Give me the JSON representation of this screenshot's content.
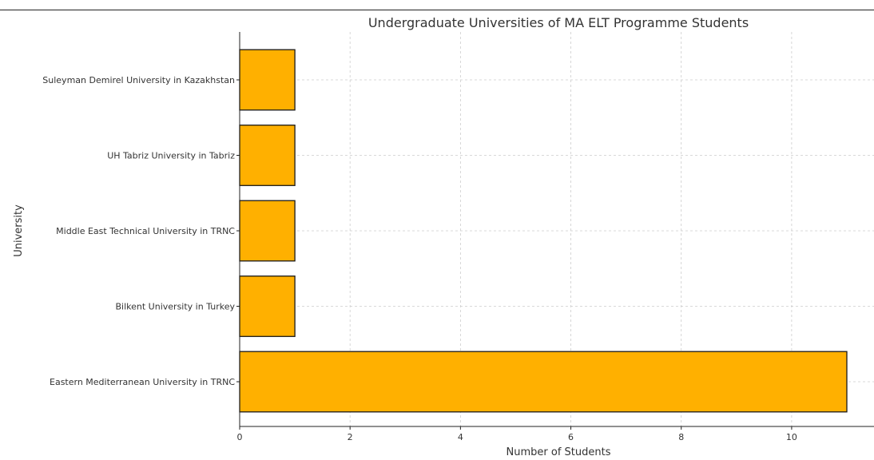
{
  "chart_data": {
    "type": "bar",
    "orientation": "horizontal",
    "title": "Undergraduate Universities of MA ELT Programme Students",
    "xlabel": "Number of Students",
    "ylabel": "University",
    "categories": [
      "Eastern Mediterranean University in TRNC",
      "Bilkent University in Turkey",
      "Middle East Technical University in TRNC",
      "UH Tabriz University in Tabriz",
      "Suleyman Demirel University in Kazakhstan"
    ],
    "values": [
      11,
      1,
      1,
      1,
      1
    ],
    "xlim": [
      0,
      11.55
    ],
    "xticks": [
      0,
      2,
      4,
      6,
      8,
      10
    ],
    "grid": true,
    "bar_color": "#FFB000",
    "edge_color": "#1a1a1a"
  }
}
